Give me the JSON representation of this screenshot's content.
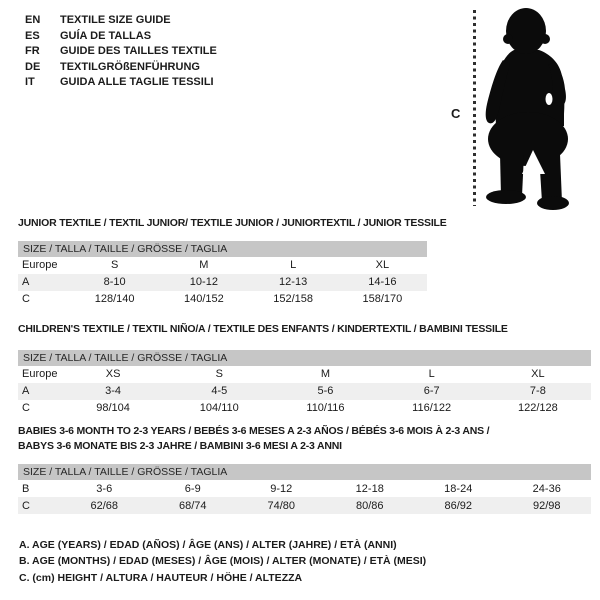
{
  "colors": {
    "header_bar": "#c6c6c6",
    "alt_row": "#efefef",
    "silhouette": "#0b0b0b"
  },
  "language_guide": {
    "items": [
      {
        "code": "EN",
        "label": "TEXTILE SIZE GUIDE"
      },
      {
        "code": "ES",
        "label": "GUÍA DE TALLAS"
      },
      {
        "code": "FR",
        "label": "GUIDE DES TAILLES TEXTILE"
      },
      {
        "code": "DE",
        "label": "TEXTILGRÖßENFÜHRUNG"
      },
      {
        "code": "IT",
        "label": "GUIDA ALLE TAGLIE TESSILI"
      }
    ]
  },
  "figure": {
    "height_marker_label": "C"
  },
  "tables": [
    {
      "title": "JUNIOR TEXTILE / TEXTIL JUNIOR/ TEXTILE JUNIOR / JUNIORTEXTIL / JUNIOR TESSILE",
      "header": "SIZE / TALLA / TAILLE / GRÖSSE / TAGLIA",
      "rows": [
        {
          "label": "Europe",
          "cells": [
            "S",
            "M",
            "L",
            "XL"
          ]
        },
        {
          "label": "A",
          "cells": [
            "8-10",
            "10-12",
            "12-13",
            "14-16"
          ]
        },
        {
          "label": "C",
          "cells": [
            "128/140",
            "140/152",
            "152/158",
            "158/170"
          ]
        }
      ]
    },
    {
      "title": "CHILDREN'S TEXTILE / TEXTIL NIÑO/A / TEXTILE DES ENFANTS / KINDERTEXTIL / BAMBINI TESSILE",
      "header": "SIZE / TALLA / TAILLE / GRÖSSE / TAGLIA",
      "rows": [
        {
          "label": "Europe",
          "cells": [
            "XS",
            "S",
            "M",
            "L",
            "XL"
          ]
        },
        {
          "label": "A",
          "cells": [
            "3-4",
            "4-5",
            "5-6",
            "6-7",
            "7-8"
          ]
        },
        {
          "label": "C",
          "cells": [
            "98/104",
            "104/110",
            "110/116",
            "116/122",
            "122/128"
          ]
        }
      ]
    },
    {
      "title": "BABIES 3-6 MONTH TO 2-3 YEARS / BEBÉS 3-6 MESES A 2-3 AÑOS / BÉBÉS 3-6 MOIS À 2-3 ANS /",
      "title_line2": "BABYS 3-6 MONATE BIS 2-3 JAHRE / BAMBINI 3-6 MESI A 2-3 ANNI",
      "header": "SIZE / TALLA / TAILLE / GRÖSSE / TAGLIA",
      "rows": [
        {
          "label": "B",
          "cells": [
            "3-6",
            "6-9",
            "9-12",
            "12-18",
            "18-24",
            "24-36"
          ]
        },
        {
          "label": "C",
          "cells": [
            "62/68",
            "68/74",
            "74/80",
            "80/86",
            "86/92",
            "92/98"
          ]
        }
      ]
    }
  ],
  "notes": [
    "A. AGE (YEARS) / EDAD (AÑOS) / ÂGE (ANS) / ALTER (JAHRE) / ETÀ (ANNI)",
    "B. AGE (MONTHS) / EDAD (MESES) / ÂGE (MOIS) / ALTER (MONATE) / ETÀ (MESI)",
    "C. (cm) HEIGHT / ALTURA / HAUTEUR / HÖHE / ALTEZZA"
  ]
}
